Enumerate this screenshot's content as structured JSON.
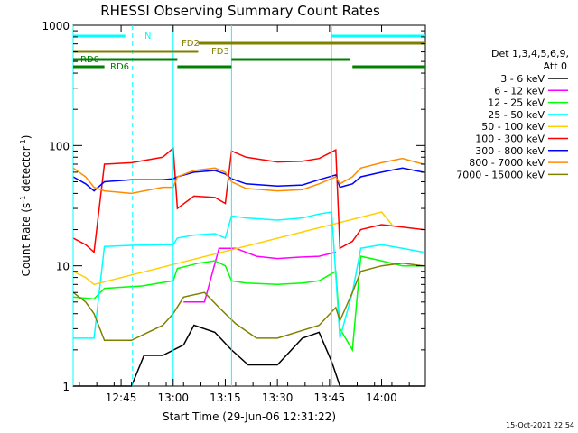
{
  "chart_data": {
    "type": "line",
    "title": "RHESSI Observing Summary Count Rates",
    "xlabel": "Start Time (29-Jun-06 12:31:22)",
    "ylabel_main": "Count Rate (s",
    "ylabel_sup1": "-1",
    "ylabel_mid": " detector",
    "ylabel_sup2": "-1",
    "ylabel_end": ")",
    "y_scale": "log",
    "ylim": [
      1,
      1000
    ],
    "xlim_minutes": [
      12.52,
      14.21
    ],
    "x_ticks": [
      {
        "value": 12.75,
        "label": "12:45"
      },
      {
        "value": 13.0,
        "label": "13:00"
      },
      {
        "value": 13.25,
        "label": "13:15"
      },
      {
        "value": 13.5,
        "label": "13:30"
      },
      {
        "value": 13.75,
        "label": "13:45"
      },
      {
        "value": 14.0,
        "label": "14:00"
      }
    ],
    "y_ticks": [
      {
        "value": 1,
        "label": "1"
      },
      {
        "value": 10,
        "label": "10"
      },
      {
        "value": 100,
        "label": "100"
      },
      {
        "value": 1000,
        "label": "1000"
      }
    ],
    "legend_position": "right",
    "legend_header": [
      "Det 1,3,4,5,6,9,",
      "Att 0"
    ],
    "footer_date": "15-Oct-2021 22:54",
    "series": [
      {
        "name": "3 - 6 keV",
        "color": "#000000",
        "points": [
          [
            12.52,
            1
          ],
          [
            12.66,
            1
          ],
          [
            12.72,
            1
          ],
          [
            12.8,
            1
          ],
          [
            12.86,
            1.8
          ],
          [
            12.95,
            1.8
          ],
          [
            13.05,
            2.2
          ],
          [
            13.1,
            3.2
          ],
          [
            13.2,
            2.8
          ],
          [
            13.28,
            2.0
          ],
          [
            13.36,
            1.5
          ],
          [
            13.5,
            1.5
          ],
          [
            13.62,
            2.5
          ],
          [
            13.7,
            2.8
          ],
          [
            13.76,
            1.6
          ],
          [
            13.8,
            1
          ],
          [
            14.21,
            1
          ]
        ]
      },
      {
        "name": "6 - 12 keV",
        "color": "#ff00ff",
        "points": [
          [
            13.05,
            5
          ],
          [
            13.1,
            5
          ],
          [
            13.15,
            5
          ],
          [
            13.22,
            14
          ],
          [
            13.3,
            14
          ],
          [
            13.4,
            12
          ],
          [
            13.5,
            11.5
          ],
          [
            13.6,
            11.8
          ],
          [
            13.7,
            12
          ],
          [
            13.78,
            13
          ]
        ]
      },
      {
        "name": "12 - 25 keV",
        "color": "#00ff00",
        "points": [
          [
            12.52,
            5.5
          ],
          [
            12.62,
            5.3
          ],
          [
            12.67,
            6.5
          ],
          [
            12.85,
            6.8
          ],
          [
            13.0,
            7.5
          ],
          [
            13.02,
            9.5
          ],
          [
            13.12,
            10.5
          ],
          [
            13.2,
            11
          ],
          [
            13.25,
            10
          ],
          [
            13.28,
            7.5
          ],
          [
            13.35,
            7.2
          ],
          [
            13.5,
            7.0
          ],
          [
            13.62,
            7.2
          ],
          [
            13.7,
            7.5
          ],
          [
            13.78,
            9
          ],
          [
            13.8,
            3
          ],
          [
            13.86,
            2
          ],
          [
            13.9,
            12
          ],
          [
            14.0,
            11
          ],
          [
            14.1,
            10
          ],
          [
            14.2,
            10
          ]
        ]
      },
      {
        "name": "25 - 50 keV",
        "color": "#00ffff",
        "points": [
          [
            12.52,
            2.5
          ],
          [
            12.62,
            2.5
          ],
          [
            12.67,
            14.5
          ],
          [
            12.8,
            14.8
          ],
          [
            12.95,
            15
          ],
          [
            13.0,
            15
          ],
          [
            13.02,
            17
          ],
          [
            13.1,
            18
          ],
          [
            13.2,
            18.5
          ],
          [
            13.25,
            17
          ],
          [
            13.28,
            26
          ],
          [
            13.35,
            25
          ],
          [
            13.5,
            24
          ],
          [
            13.62,
            25
          ],
          [
            13.7,
            27
          ],
          [
            13.76,
            28
          ],
          [
            13.8,
            2.5
          ],
          [
            13.86,
            6
          ],
          [
            13.9,
            14
          ],
          [
            14.0,
            15
          ],
          [
            14.1,
            14
          ],
          [
            14.2,
            13
          ]
        ]
      },
      {
        "name": "50 - 100 keV",
        "color": "#ffd000",
        "points": [
          [
            12.52,
            9
          ],
          [
            12.58,
            8
          ],
          [
            12.62,
            7
          ],
          [
            14.0,
            28
          ],
          [
            14.05,
            22
          ]
        ]
      },
      {
        "name": "100 - 300 keV",
        "color": "#ff0000",
        "points": [
          [
            12.52,
            17
          ],
          [
            12.58,
            15
          ],
          [
            12.62,
            13
          ],
          [
            12.67,
            70
          ],
          [
            12.8,
            72
          ],
          [
            12.95,
            80
          ],
          [
            13.0,
            95
          ],
          [
            13.02,
            30
          ],
          [
            13.1,
            38
          ],
          [
            13.2,
            37
          ],
          [
            13.25,
            33
          ],
          [
            13.28,
            90
          ],
          [
            13.35,
            80
          ],
          [
            13.5,
            73
          ],
          [
            13.62,
            74
          ],
          [
            13.7,
            78
          ],
          [
            13.78,
            92
          ],
          [
            13.8,
            14
          ],
          [
            13.86,
            16
          ],
          [
            13.9,
            20
          ],
          [
            14.0,
            22
          ],
          [
            14.1,
            21
          ],
          [
            14.2,
            20
          ]
        ]
      },
      {
        "name": "300 - 800 keV",
        "color": "#0000ff",
        "points": [
          [
            12.52,
            55
          ],
          [
            12.58,
            48
          ],
          [
            12.62,
            42
          ],
          [
            12.67,
            50
          ],
          [
            12.8,
            52
          ],
          [
            12.95,
            52
          ],
          [
            13.0,
            53
          ],
          [
            13.02,
            55
          ],
          [
            13.1,
            60
          ],
          [
            13.2,
            62
          ],
          [
            13.25,
            58
          ],
          [
            13.28,
            53
          ],
          [
            13.35,
            48
          ],
          [
            13.5,
            46
          ],
          [
            13.62,
            47
          ],
          [
            13.7,
            52
          ],
          [
            13.78,
            57
          ],
          [
            13.8,
            45
          ],
          [
            13.86,
            48
          ],
          [
            13.9,
            55
          ],
          [
            14.0,
            60
          ],
          [
            14.1,
            65
          ],
          [
            14.2,
            60
          ]
        ]
      },
      {
        "name": "800 - 7000 keV",
        "color": "#ff8c00",
        "points": [
          [
            12.52,
            65
          ],
          [
            12.58,
            55
          ],
          [
            12.62,
            45
          ],
          [
            12.67,
            42
          ],
          [
            12.8,
            40
          ],
          [
            12.95,
            45
          ],
          [
            13.0,
            45
          ],
          [
            13.02,
            55
          ],
          [
            13.1,
            62
          ],
          [
            13.2,
            65
          ],
          [
            13.25,
            60
          ],
          [
            13.28,
            50
          ],
          [
            13.35,
            44
          ],
          [
            13.5,
            42
          ],
          [
            13.62,
            43
          ],
          [
            13.7,
            48
          ],
          [
            13.78,
            55
          ],
          [
            13.8,
            48
          ],
          [
            13.86,
            55
          ],
          [
            13.9,
            65
          ],
          [
            14.0,
            72
          ],
          [
            14.1,
            78
          ],
          [
            14.2,
            70
          ]
        ]
      },
      {
        "name": "7000 - 15000 keV",
        "color": "#808000",
        "points": [
          [
            12.52,
            6
          ],
          [
            12.58,
            5
          ],
          [
            12.62,
            4
          ],
          [
            12.67,
            2.4
          ],
          [
            12.8,
            2.4
          ],
          [
            12.95,
            3.2
          ],
          [
            13.0,
            4
          ],
          [
            13.05,
            5.5
          ],
          [
            13.15,
            6
          ],
          [
            13.22,
            4.5
          ],
          [
            13.3,
            3.3
          ],
          [
            13.4,
            2.5
          ],
          [
            13.5,
            2.5
          ],
          [
            13.62,
            2.9
          ],
          [
            13.7,
            3.2
          ],
          [
            13.78,
            4.5
          ],
          [
            13.8,
            3.5
          ],
          [
            13.86,
            6
          ],
          [
            13.9,
            9
          ],
          [
            14.0,
            10
          ],
          [
            14.1,
            10.5
          ],
          [
            14.2,
            10
          ]
        ]
      }
    ],
    "vlines_cyan_solid_minutes": [
      12.52,
      13.0,
      13.28,
      13.76
    ],
    "vlines_cyan_dashed_minutes": [
      12.805,
      14.16
    ],
    "flag_bars": [
      {
        "label": "N",
        "color": "#00ffff",
        "segments": [
          [
            12.52,
            12.77
          ],
          [
            13.76,
            14.21
          ]
        ]
      },
      {
        "label": "FD2",
        "color": "#808000",
        "segments": [
          [
            13.12,
            14.21
          ]
        ]
      },
      {
        "label": "FD3",
        "color": "#808000",
        "segments": [
          [
            12.52,
            13.12
          ]
        ]
      },
      {
        "label": "RD0",
        "color": "#008000",
        "segments": [
          [
            12.52,
            13.02
          ],
          [
            13.28,
            13.85
          ]
        ]
      },
      {
        "label": "RD6",
        "color": "#008000",
        "segments": [
          [
            12.52,
            12.67
          ],
          [
            13.02,
            13.28
          ],
          [
            13.86,
            14.21
          ]
        ]
      }
    ]
  }
}
